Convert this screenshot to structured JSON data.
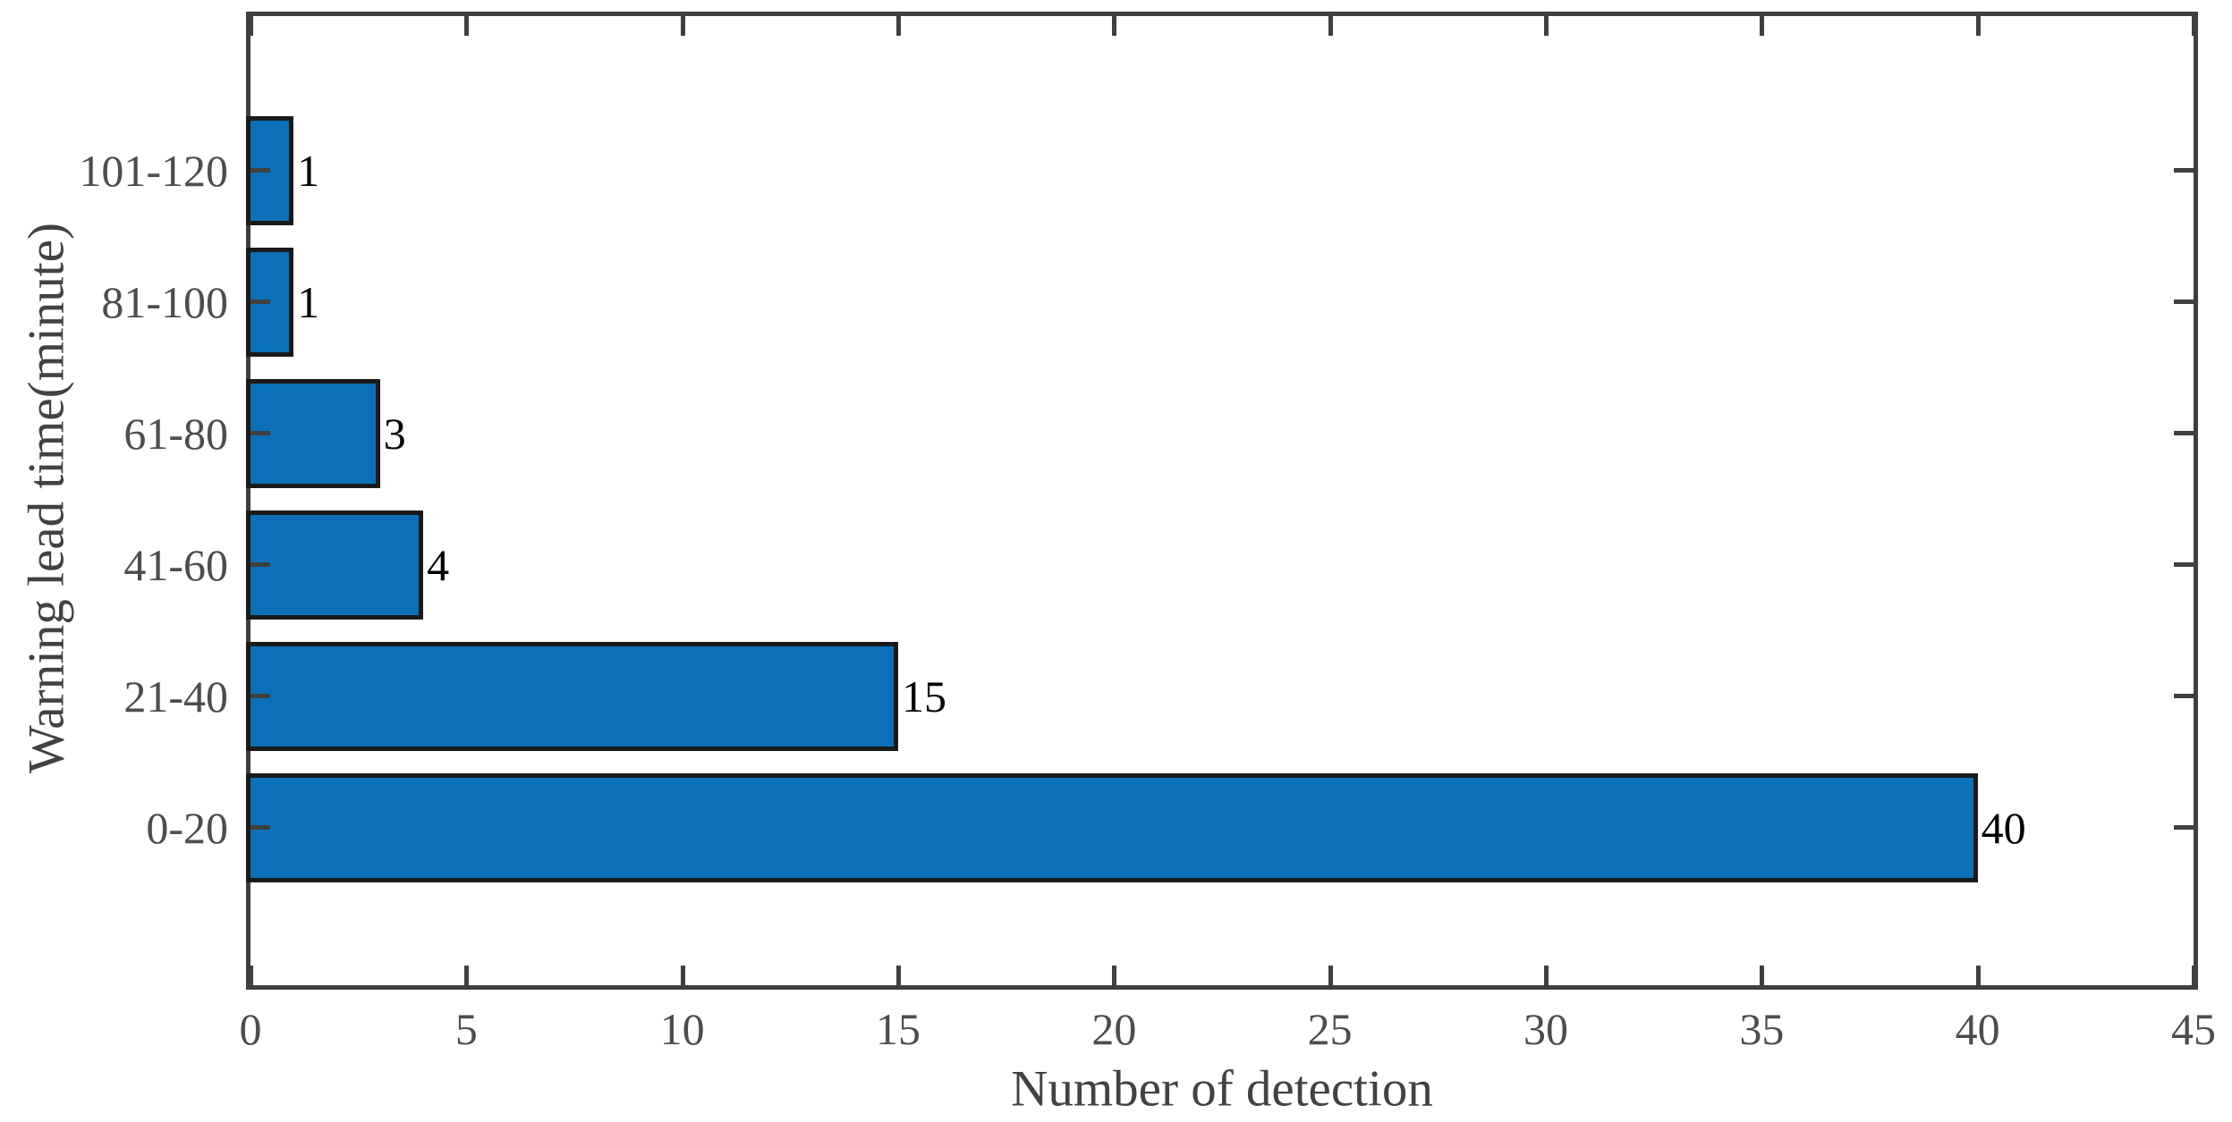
{
  "chart_data": {
    "type": "bar",
    "orientation": "horizontal",
    "title": "",
    "xlabel": "Number of detection",
    "ylabel": "Warning lead time(minute)",
    "categories": [
      "0-20",
      "21-40",
      "41-60",
      "61-80",
      "81-100",
      "101-120"
    ],
    "values": [
      40,
      15,
      4,
      3,
      1,
      1
    ],
    "bar_labels": [
      "40",
      "15",
      "4",
      "3",
      "1",
      "1"
    ],
    "xlim": [
      0,
      45
    ],
    "xticks": [
      0,
      5,
      10,
      15,
      20,
      25,
      30,
      35,
      40,
      45
    ],
    "grid": false,
    "legend": null,
    "box": true,
    "tick_direction": "in",
    "colors": {
      "bar_fill": "#0b70b8",
      "bar_edge": "#1a1a1a",
      "axis": "#3f3f3f",
      "tick_label": "#4d4d4d",
      "value_label": "#000000",
      "axis_title": "#424242",
      "background": "#ffffff"
    }
  }
}
